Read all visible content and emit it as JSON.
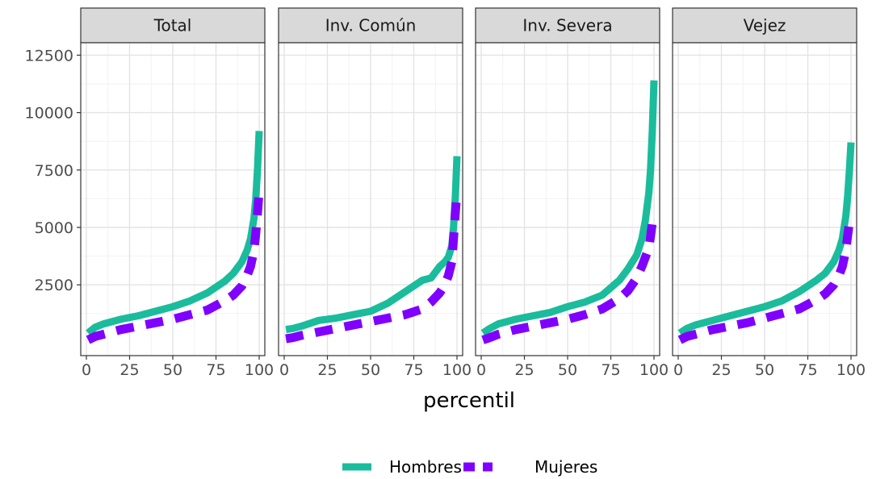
{
  "chart_data": {
    "type": "line",
    "xlabel": "percentil",
    "ylabel": "",
    "xlim": [
      0,
      100
    ],
    "ylim": [
      0,
      12500
    ],
    "x_ticks": [
      0,
      25,
      50,
      75,
      100
    ],
    "y_ticks": [
      2500,
      5000,
      7500,
      10000,
      12500
    ],
    "grid": true,
    "legend_position": "bottom",
    "colors": {
      "Hombres": "#1abc9c",
      "Mujeres": "#7f00ff"
    },
    "x": [
      1,
      5,
      10,
      20,
      30,
      40,
      50,
      60,
      70,
      80,
      85,
      90,
      93,
      95,
      97,
      98,
      99,
      100
    ],
    "panels": [
      {
        "title": "Total",
        "series": [
          {
            "name": "Hombres",
            "values": [
              400,
              650,
              800,
              1000,
              1150,
              1350,
              1550,
              1800,
              2150,
              2650,
              3000,
              3500,
              4000,
              4500,
              5400,
              6200,
              7500,
              9200
            ]
          },
          {
            "name": "Mujeres",
            "values": [
              100,
              250,
              350,
              550,
              700,
              850,
              1000,
              1200,
              1400,
              1800,
              2050,
              2450,
              2900,
              3300,
              4000,
              4700,
              5600,
              6600
            ]
          }
        ]
      },
      {
        "title": "Inv. Común",
        "series": [
          {
            "name": "Hombres",
            "values": [
              550,
              600,
              700,
              950,
              1050,
              1200,
              1350,
              1700,
              2200,
              2700,
              2800,
              3300,
              3500,
              3700,
              4200,
              5000,
              6300,
              8100
            ]
          },
          {
            "name": "Mujeres",
            "values": [
              150,
              200,
              300,
              450,
              600,
              750,
              900,
              1050,
              1200,
              1450,
              1750,
              2150,
              2500,
              2900,
              3500,
              4500,
              5600,
              6600
            ]
          }
        ]
      },
      {
        "title": "Inv. Severa",
        "series": [
          {
            "name": "Hombres",
            "values": [
              400,
              600,
              800,
              1000,
              1150,
              1300,
              1550,
              1750,
              2050,
              2700,
              3200,
              3800,
              4500,
              5300,
              6500,
              7500,
              9200,
              11400
            ]
          },
          {
            "name": "Mujeres",
            "values": [
              100,
              200,
              350,
              550,
              700,
              850,
              1000,
              1200,
              1450,
              1900,
              2250,
              2800,
              3300,
              3700,
              4100,
              4600,
              5200,
              5300
            ]
          }
        ]
      },
      {
        "title": "Vejez",
        "series": [
          {
            "name": "Hombres",
            "values": [
              400,
              600,
              750,
              950,
              1150,
              1350,
              1550,
              1800,
              2200,
              2700,
              3000,
              3500,
              4000,
              4500,
              5500,
              6300,
              7400,
              8700
            ]
          },
          {
            "name": "Mujeres",
            "values": [
              100,
              250,
              350,
              550,
              700,
              850,
              1050,
              1250,
              1450,
              1850,
              2100,
              2500,
              2900,
              3300,
              4000,
              4600,
              5200,
              5500
            ]
          }
        ]
      }
    ]
  }
}
